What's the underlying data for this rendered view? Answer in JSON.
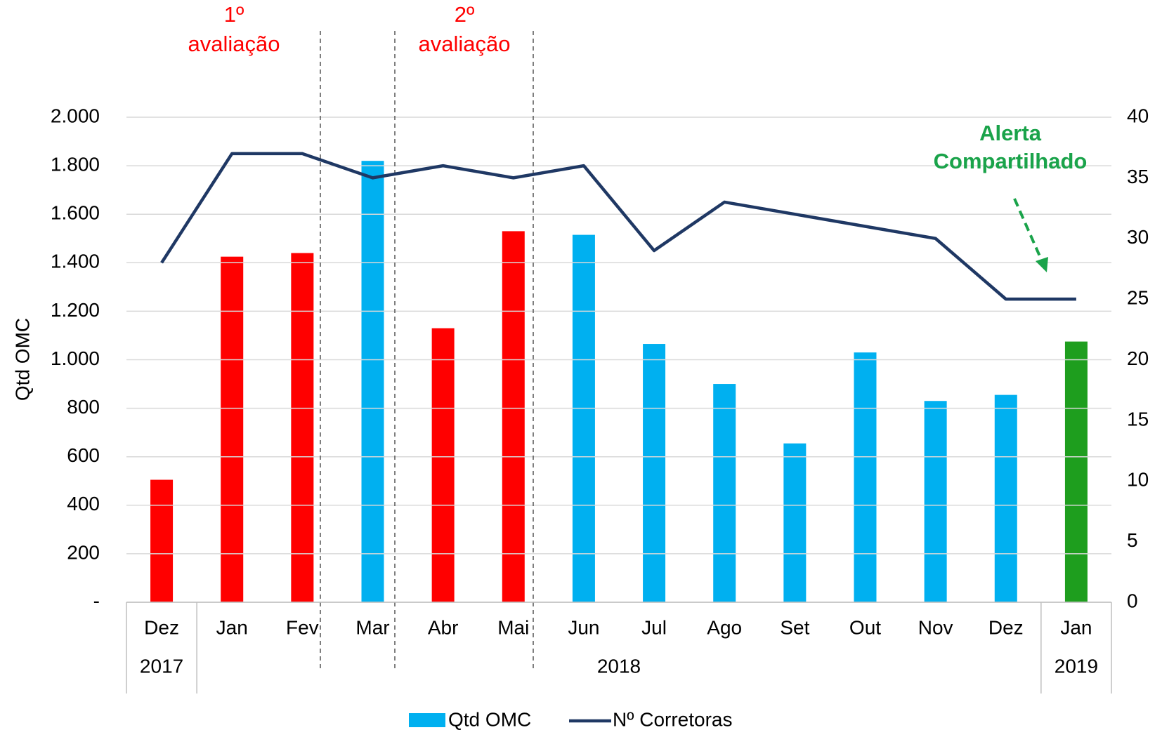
{
  "chart_data": {
    "type": "bar_line",
    "y_axis_label": "Qtd OMC",
    "categories": [
      "Dez",
      "Jan",
      "Fev",
      "Mar",
      "Abr",
      "Mai",
      "Jun",
      "Jul",
      "Ago",
      "Set",
      "Out",
      "Nov",
      "Dez",
      "Jan"
    ],
    "year_labels": [
      "2017",
      "2018",
      "2019"
    ],
    "series": [
      {
        "name": "Qtd OMC",
        "type": "bar",
        "color": "#00b0f0",
        "colors": [
          "#ff0000",
          "#ff0000",
          "#ff0000",
          "#00b0f0",
          "#ff0000",
          "#ff0000",
          "#00b0f0",
          "#00b0f0",
          "#00b0f0",
          "#00b0f0",
          "#00b0f0",
          "#00b0f0",
          "#00b0f0",
          "#1e9e1e"
        ],
        "values": [
          505,
          1425,
          1440,
          1820,
          1130,
          1530,
          1515,
          1065,
          900,
          655,
          1030,
          830,
          855,
          1075
        ]
      },
      {
        "name": "Nº Corretoras",
        "type": "line",
        "axis": "y2",
        "color": "#1f3864",
        "values": [
          28,
          37,
          37,
          35,
          36,
          35,
          36,
          29,
          33,
          32,
          31,
          30,
          25,
          25
        ]
      }
    ],
    "ylim": [
      0,
      2000
    ],
    "yticks": [
      {
        "value": 0,
        "label": "-"
      },
      200,
      400,
      600,
      800,
      {
        "value": 1000,
        "label": "1.000"
      },
      {
        "value": 1200,
        "label": "1.200"
      },
      {
        "value": 1400,
        "label": "1.400"
      },
      {
        "value": 1600,
        "label": "1.600"
      },
      {
        "value": 1800,
        "label": "1.800"
      },
      {
        "value": 2000,
        "label": "2.000"
      }
    ],
    "y2lim": [
      0,
      40
    ],
    "y2ticks": [
      0,
      5,
      10,
      15,
      20,
      25,
      30,
      35,
      40
    ],
    "grid": true,
    "legend": "bottom",
    "annotations": [
      {
        "lines": [
          "1º",
          "avaliação"
        ]
      },
      {
        "lines": [
          "2º",
          "avaliação"
        ]
      },
      {
        "lines": [
          "Alerta",
          "Compartilhado"
        ]
      }
    ]
  }
}
